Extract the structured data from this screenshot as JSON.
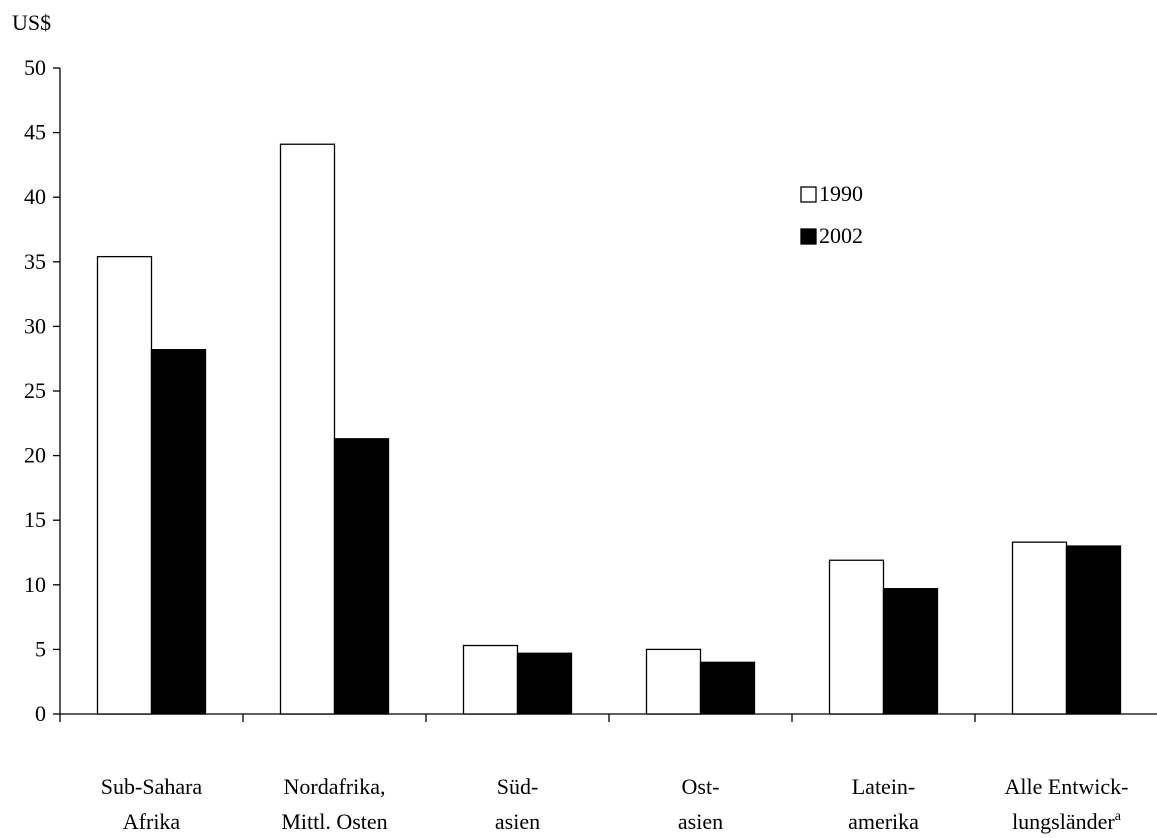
{
  "chart_data": {
    "type": "bar",
    "ylabel": "US$",
    "xlabel": "",
    "ylim": [
      0,
      50
    ],
    "yticks": [
      0,
      5,
      10,
      15,
      20,
      25,
      30,
      35,
      40,
      45,
      50
    ],
    "categories": [
      [
        "Sub-Sahara",
        "Afrika"
      ],
      [
        "Nordafrika,",
        "Mittl. Osten"
      ],
      [
        "Süd-",
        "asien"
      ],
      [
        "Ost-",
        "asien"
      ],
      [
        "Latein-",
        "amerika"
      ],
      [
        "Alle Entwick-",
        "lungsländer"
      ]
    ],
    "category_superscripts": [
      "",
      "",
      "",
      "",
      "",
      "a"
    ],
    "series": [
      {
        "name": "1990",
        "color": "#ffffff",
        "values": [
          35.4,
          44.1,
          5.3,
          5.0,
          11.9,
          13.3
        ]
      },
      {
        "name": "2002",
        "color": "#000000",
        "values": [
          28.2,
          21.3,
          4.7,
          4.0,
          9.7,
          13.0
        ]
      }
    ],
    "legend": {
      "position": "top-right",
      "labels": [
        "1990",
        "2002"
      ]
    },
    "grid": false
  }
}
